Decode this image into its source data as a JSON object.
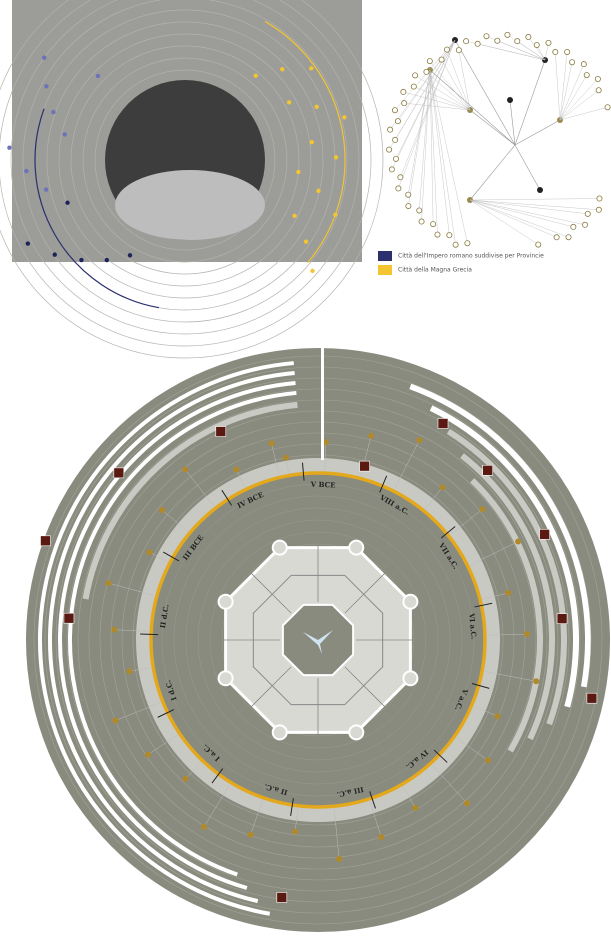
{
  "legend": {
    "items": [
      {
        "label": "Città dell'Impero romano suddivise per Provincie",
        "color": "#2b2f6e"
      },
      {
        "label": "Città della Magna Grecia",
        "color": "#f2c531"
      }
    ]
  },
  "ring_labels": [
    "V BCE",
    "VIII a.C.",
    "VII a.C.",
    "VI a.C.",
    "V a.C.",
    "IV a.C.",
    "III a.C.",
    "II a.C.",
    "I a.C.",
    "I d.C.",
    "II d.C.",
    "III BCE",
    "IV BCE"
  ]
}
